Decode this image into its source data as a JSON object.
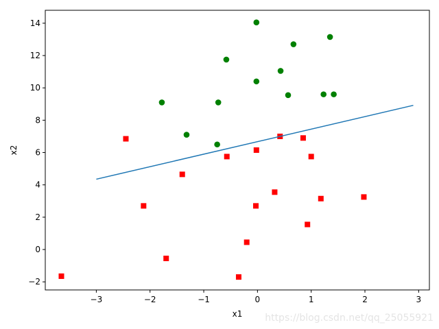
{
  "chart_data": {
    "type": "scatter",
    "xlabel": "x1",
    "ylabel": "x2",
    "xlim": [
      -3.95,
      3.2
    ],
    "ylim": [
      -2.5,
      14.8
    ],
    "xticks": [
      -3,
      -2,
      -1,
      0,
      1,
      2,
      3
    ],
    "yticks": [
      -2,
      0,
      2,
      4,
      6,
      8,
      10,
      12,
      14
    ],
    "xtick_labels": [
      "−3",
      "−2",
      "−1",
      "0",
      "1",
      "2",
      "3"
    ],
    "ytick_labels": [
      "−2",
      "0",
      "2",
      "4",
      "6",
      "8",
      "10",
      "12",
      "14"
    ],
    "grid": false,
    "series": [
      {
        "marker": "circle",
        "color": "#008000",
        "points": [
          [
            -0.02,
            14.05
          ],
          [
            1.35,
            13.15
          ],
          [
            0.67,
            12.7
          ],
          [
            -0.58,
            11.75
          ],
          [
            0.43,
            11.05
          ],
          [
            -0.02,
            10.4
          ],
          [
            -1.78,
            9.1
          ],
          [
            -0.73,
            9.1
          ],
          [
            0.57,
            9.55
          ],
          [
            1.23,
            9.6
          ],
          [
            1.42,
            9.6
          ],
          [
            -1.32,
            7.1
          ],
          [
            -0.75,
            6.5
          ]
        ]
      },
      {
        "marker": "square",
        "color": "#ff0000",
        "points": [
          [
            -2.45,
            6.85
          ],
          [
            0.42,
            7.0
          ],
          [
            0.85,
            6.9
          ],
          [
            -0.57,
            5.75
          ],
          [
            -0.02,
            6.15
          ],
          [
            1.0,
            5.75
          ],
          [
            -1.4,
            4.65
          ],
          [
            0.32,
            3.55
          ],
          [
            -2.12,
            2.7
          ],
          [
            -0.03,
            2.7
          ],
          [
            1.18,
            3.15
          ],
          [
            1.98,
            3.25
          ],
          [
            0.93,
            1.55
          ],
          [
            -0.2,
            0.45
          ],
          [
            -1.7,
            -0.55
          ],
          [
            -3.65,
            -1.65
          ],
          [
            -0.35,
            -1.7
          ]
        ]
      },
      {
        "type": "line",
        "color": "#1f77b4",
        "x": [
          -3.0,
          2.9
        ],
        "y": [
          4.35,
          8.92
        ]
      }
    ]
  },
  "watermark": "https://blog.csdn.net/qq_25055921"
}
